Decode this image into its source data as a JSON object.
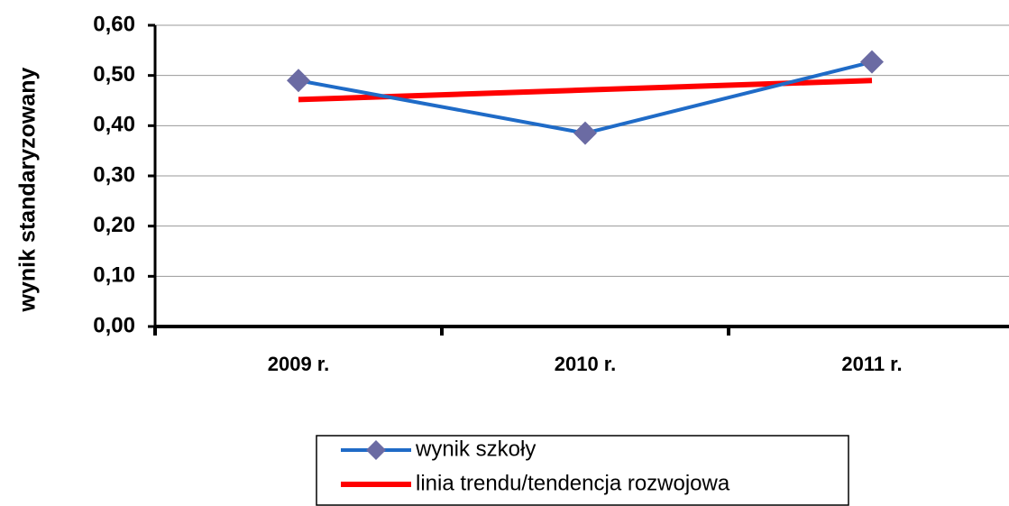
{
  "chart_data": {
    "type": "line",
    "y_label": "wynik standaryzowany",
    "categories": [
      "2009 r.",
      "2010 r.",
      "2011 r."
    ],
    "series": [
      {
        "name": "wynik szkoły",
        "color": "#1f6bc7",
        "marker_color": "#6b6ba3",
        "values": [
          0.49,
          0.385,
          0.527
        ]
      },
      {
        "name": "linia trendu/tendencja rozwojowa",
        "color": "#ff0000",
        "values": [
          0.452,
          0.471,
          0.49
        ]
      }
    ],
    "ylim": [
      0,
      0.6
    ],
    "yticks": [
      {
        "value": 0,
        "label": "0,00"
      },
      {
        "value": 0.1,
        "label": "0,10"
      },
      {
        "value": 0.2,
        "label": "0,20"
      },
      {
        "value": 0.3,
        "label": "0,30"
      },
      {
        "value": 0.4,
        "label": "0,40"
      },
      {
        "value": 0.5,
        "label": "0,50"
      },
      {
        "value": 0.6,
        "label": "0,60"
      }
    ],
    "grid": true
  }
}
